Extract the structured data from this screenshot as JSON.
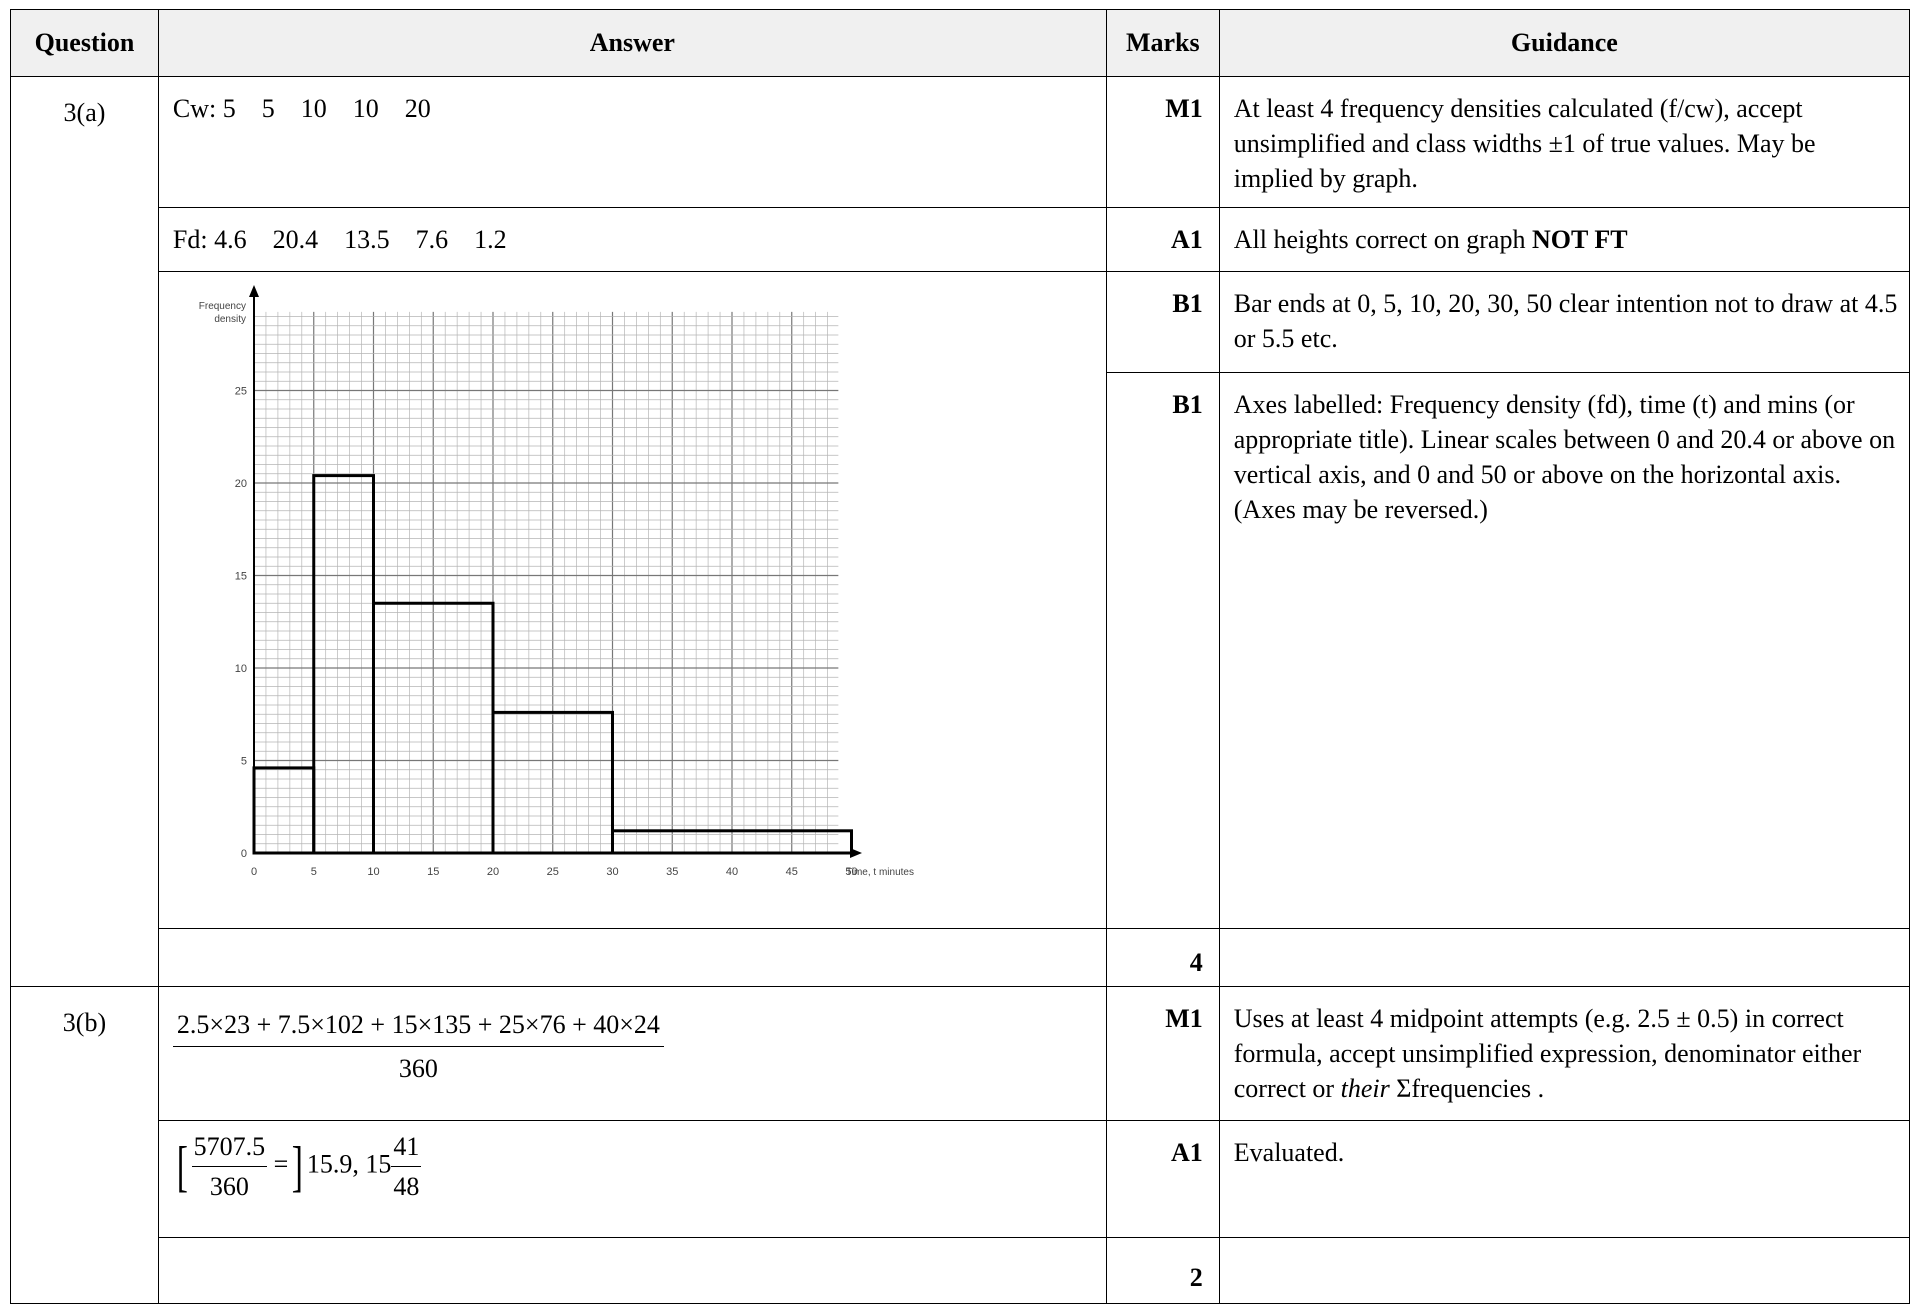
{
  "header": {
    "question": "Question",
    "answer": "Answer",
    "marks": "Marks",
    "guidance": "Guidance"
  },
  "part_a": {
    "question": "3(a)",
    "cw_line": "Cw: 5    5    10    10    20",
    "fd_line": "Fd: 4.6    20.4    13.5    7.6    1.2",
    "marks": [
      "M1",
      "A1",
      "B1",
      "B1",
      "4"
    ],
    "guidance_1_pre": "At least 4 frequency densities calculated (f/cw), accept unsimplified and class widths ±1 of true values. May be implied by graph.",
    "guidance_2_pre": "All heights correct on graph ",
    "guidance_2_bold": "NOT FT",
    "guidance_3": "Bar ends at 0, 5, 10, 20, 30, 50 clear intention not to draw at 4.5 or 5.5 etc.",
    "guidance_4": "Axes labelled: Frequency density (fd), time (t) and mins (or appropriate title). Linear scales between 0 and 20.4 or above on vertical axis, and 0 and 50 or above on the horizontal axis. (Axes may be reversed.)"
  },
  "part_b": {
    "question": "3(b)",
    "numerator": "2.5×23 + 7.5×102 + 15×135 + 25×76 + 40×24",
    "denominator": "360",
    "eval_num": "5707.5",
    "eval_den": "360",
    "eval_eq": "=",
    "eval_result": "15.9,",
    "mixed_whole": "15",
    "mixed_num": "41",
    "mixed_den": "48",
    "marks": [
      "M1",
      "A1",
      "2"
    ],
    "guidance_1_pre": "Uses at least 4 midpoint attempts (e.g. 2.5 ± 0.5) in correct formula, accept unsimplified expression, denominator either correct or ",
    "guidance_1_italic": "their",
    "guidance_1_post": " Σfrequencies .",
    "guidance_2": "Evaluated."
  },
  "chart_data": {
    "type": "bar",
    "title": "",
    "ylabel": "Frequency density",
    "xlabel": "Time, t minutes",
    "xlim": [
      0,
      60
    ],
    "ylim": [
      0,
      30
    ],
    "xticks": [
      0,
      5,
      10,
      15,
      20,
      25,
      30,
      35,
      40,
      45,
      50
    ],
    "yticks": [
      0,
      5,
      10,
      15,
      20,
      25
    ],
    "bins": [
      {
        "from": 0,
        "to": 5,
        "fd": 4.6
      },
      {
        "from": 5,
        "to": 10,
        "fd": 20.4
      },
      {
        "from": 10,
        "to": 20,
        "fd": 13.5
      },
      {
        "from": 20,
        "to": 30,
        "fd": 7.6
      },
      {
        "from": 30,
        "to": 50,
        "fd": 1.2
      }
    ],
    "grid": true
  }
}
